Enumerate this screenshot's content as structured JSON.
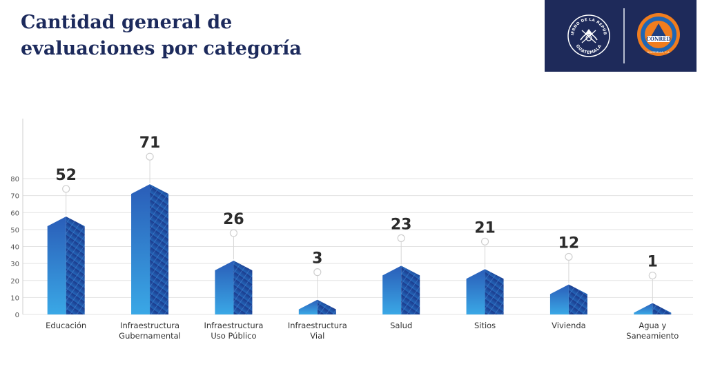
{
  "header": {
    "title_line1": "Cantidad general de",
    "title_line2": "evaluaciones por categoría"
  },
  "logos": {
    "gobierno_top": "GOBIERNO DE LA REPÚBLICA",
    "gobierno_bottom": "GUATEMALA",
    "conred_center": "CONRED",
    "conred_bottom": "GUATEMALA, C.A."
  },
  "colors": {
    "header_panel": "#1e2a5a",
    "title": "#1c2a5c",
    "bar_light": "#3aa6e6",
    "bar_dark": "#1b3f93",
    "conred_orange": "#f07d1e"
  },
  "chart_data": {
    "type": "bar",
    "categories": [
      [
        "Educación"
      ],
      [
        "Infraestructura",
        "Gubernamental"
      ],
      [
        "Infraestructura",
        "Uso Público"
      ],
      [
        "Infraestructura",
        "Vial"
      ],
      [
        "Salud"
      ],
      [
        "Sitios"
      ],
      [
        "Vivienda"
      ],
      [
        "Agua y",
        "Saneamiento"
      ]
    ],
    "values": [
      52,
      71,
      26,
      3,
      23,
      21,
      12,
      1
    ],
    "data_labels": [
      "52",
      "71",
      "26",
      "3",
      "23",
      "21",
      "12",
      "1"
    ],
    "yticks": [
      0,
      10,
      20,
      30,
      40,
      50,
      60,
      70,
      80
    ],
    "ylim": [
      0,
      80
    ],
    "grid": true,
    "legend": "none"
  }
}
